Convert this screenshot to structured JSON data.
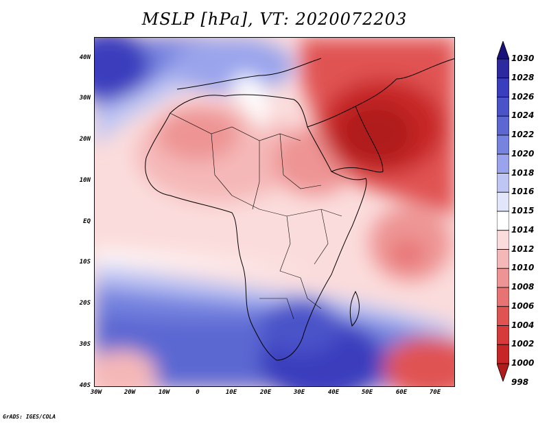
{
  "title": "MSLP [hPa], VT: 2020072203",
  "credit": "GrADS: IGES/COLA",
  "lat_labels": [
    "40N",
    "30N",
    "20N",
    "10N",
    "EQ",
    "10S",
    "20S",
    "30S",
    "40S"
  ],
  "lon_labels": [
    "30W",
    "20W",
    "10W",
    "0",
    "10E",
    "20E",
    "30E",
    "40E",
    "50E",
    "60E",
    "70E"
  ],
  "colorbar": {
    "levels": [
      "1030",
      "1028",
      "1026",
      "1024",
      "1022",
      "1020",
      "1018",
      "1016",
      "1015",
      "1014",
      "1012",
      "1010",
      "1008",
      "1006",
      "1004",
      "1002",
      "1000",
      "998"
    ],
    "colors": [
      "#19127a",
      "#2d2aa0",
      "#3a3dbd",
      "#4b53c9",
      "#5c67d2",
      "#7683df",
      "#9aa4ec",
      "#bfc6f4",
      "#e2e6fb",
      "#ffffff",
      "#fbdcdc",
      "#f5b8b8",
      "#ee9494",
      "#e87373",
      "#e05353",
      "#d63a3a",
      "#c72626",
      "#b01c1c"
    ]
  },
  "map_regions": {
    "north_africa_low": "#ee9494",
    "arabia_low": "#b01c1c",
    "southern_high": "#5c67d2",
    "atlantic_high": "#4b53c9",
    "equatorial": "#fbdcdc",
    "indian_ocean_low": "#e87373"
  }
}
